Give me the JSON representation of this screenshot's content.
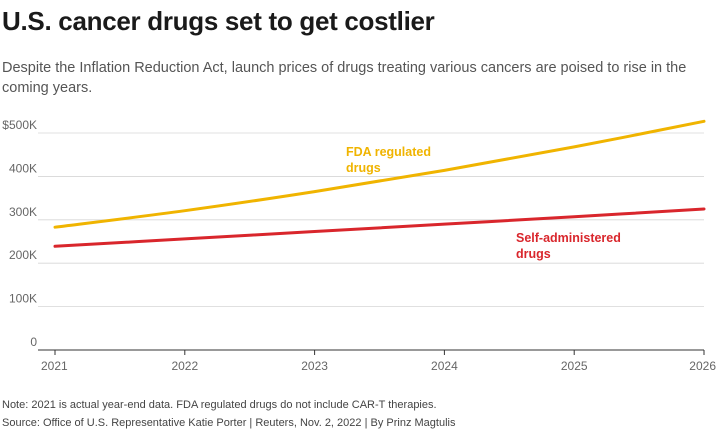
{
  "title": "U.S. cancer drugs set to get costlier",
  "subtitle": "Despite the Inflation Reduction Act, launch prices of drugs treating various cancers are poised to rise in the coming years.",
  "note": "Note: 2021 is actual year-end data. FDA regulated drugs do not include CAR-T therapies.",
  "source": "Source: Office of U.S. Representative Katie Porter | Reuters, Nov. 2, 2022 | By Prinz Magtulis",
  "chart_data": {
    "type": "line",
    "x": [
      2021,
      2022,
      2023,
      2024,
      2025,
      2026
    ],
    "x_tick_labels": [
      "2021",
      "2022",
      "2023",
      "2024",
      "2025",
      "2026"
    ],
    "y_ticks": [
      0,
      100000,
      200000,
      300000,
      400000,
      500000
    ],
    "y_tick_labels": [
      "0",
      "100K",
      "200K",
      "300K",
      "400K",
      "$500K"
    ],
    "ylim": [
      0,
      530000
    ],
    "grid": "horizontal",
    "series": [
      {
        "name": "FDA regulated drugs",
        "label_lines": [
          "FDA regulated",
          "drugs"
        ],
        "color": "#f0b400",
        "values": [
          283000,
          321000,
          365000,
          414000,
          468000,
          527000
        ]
      },
      {
        "name": "Self-administered drugs",
        "label_lines": [
          "Self-administered",
          "drugs"
        ],
        "color": "#d9262c",
        "values": [
          239000,
          256000,
          273000,
          290000,
          307000,
          325000
        ]
      }
    ]
  }
}
